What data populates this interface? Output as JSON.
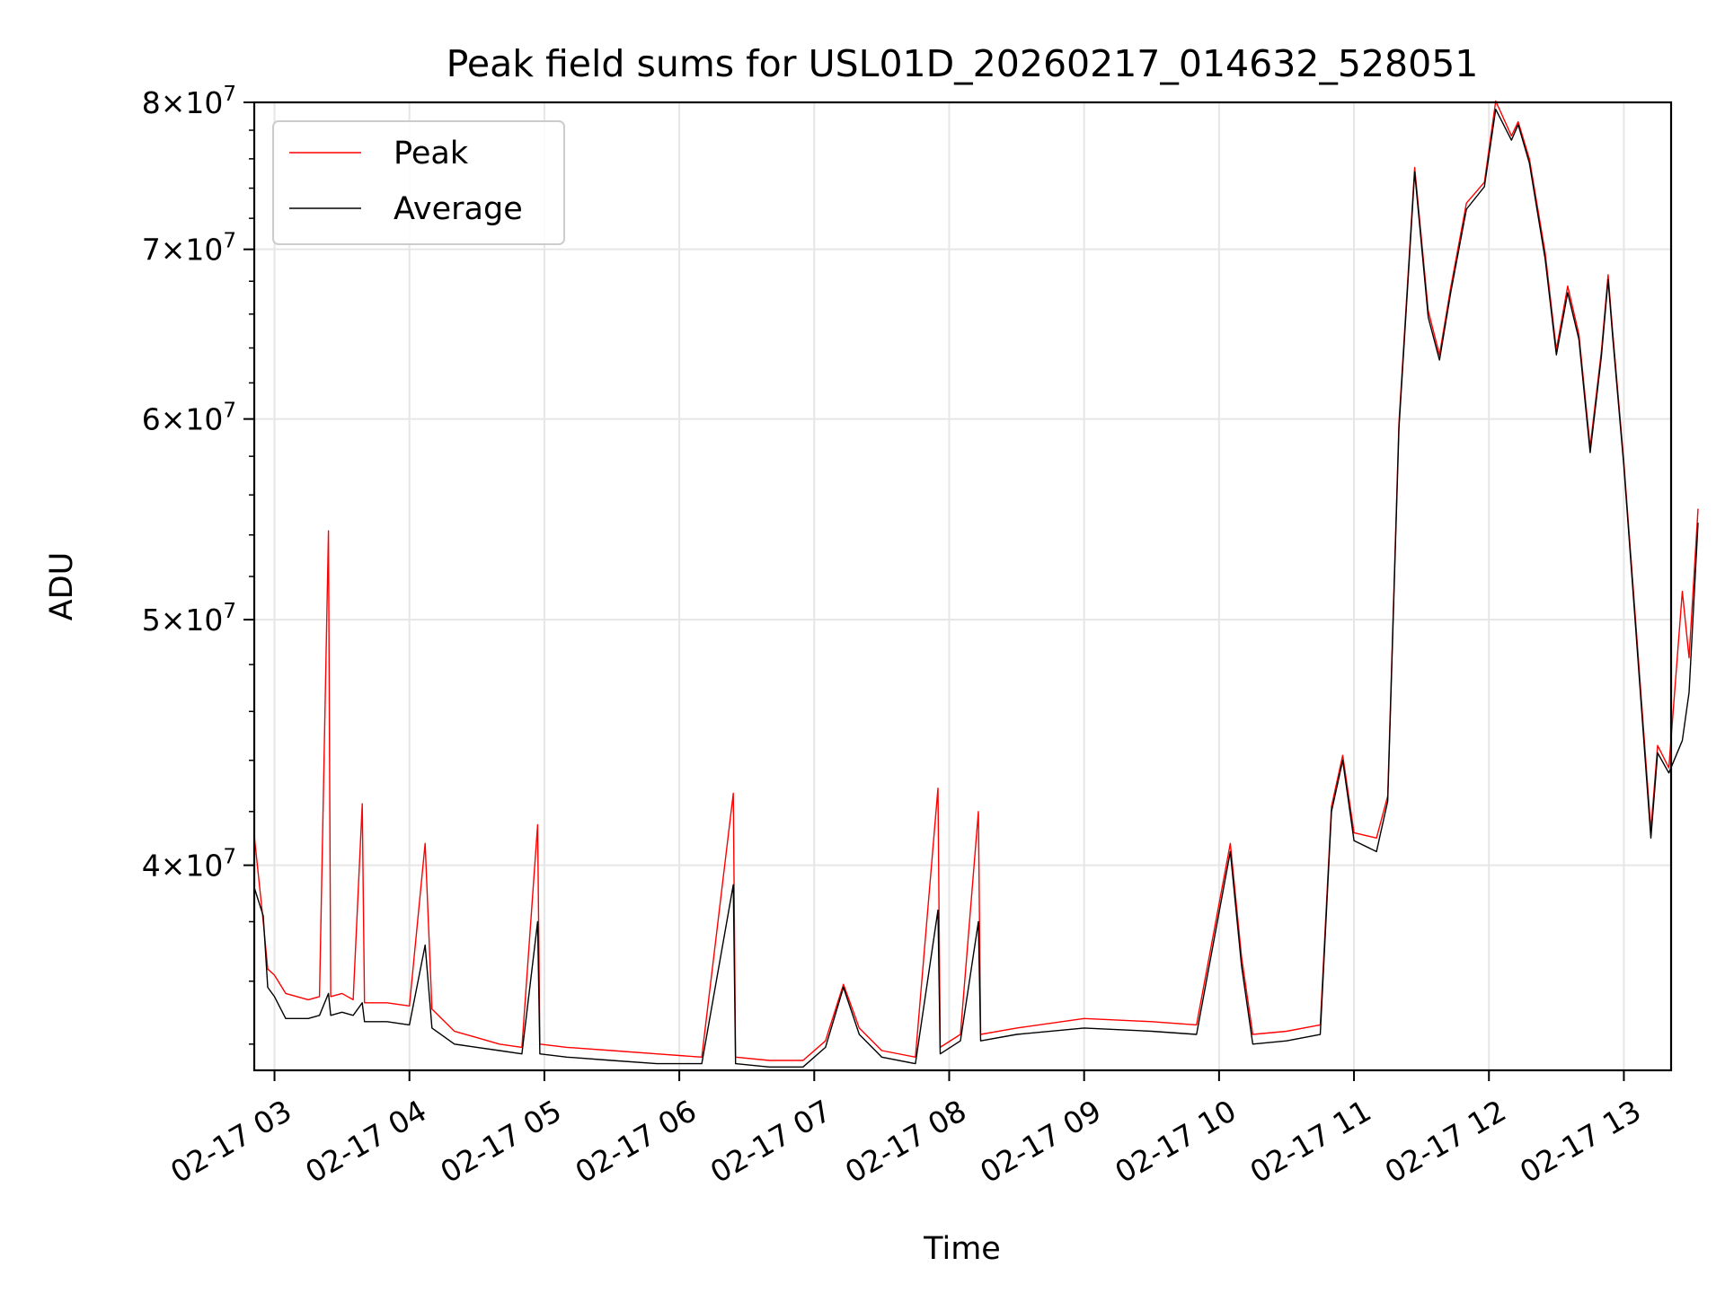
{
  "chart_data": {
    "type": "line",
    "title": "Peak field sums for USL01D_20260217_014632_528051",
    "xlabel": "Time",
    "ylabel": "ADU",
    "yscale": "log",
    "ylim": [
      33200000,
      80000000
    ],
    "xlim": [
      "2026-02-17 02:51",
      "2026-02-17 13:21"
    ],
    "grid": true,
    "legend": {
      "location": "upper-left",
      "entries": [
        "Peak",
        "Average"
      ]
    },
    "x_ticks": [
      "02-17 03",
      "02-17 04",
      "02-17 05",
      "02-17 06",
      "02-17 07",
      "02-17 08",
      "02-17 09",
      "02-17 10",
      "02-17 11",
      "02-17 12",
      "02-17 13"
    ],
    "x_tick_times": [
      "2026-02-17 03:00",
      "2026-02-17 04:00",
      "2026-02-17 05:00",
      "2026-02-17 06:00",
      "2026-02-17 07:00",
      "2026-02-17 08:00",
      "2026-02-17 09:00",
      "2026-02-17 10:00",
      "2026-02-17 11:00",
      "2026-02-17 12:00",
      "2026-02-17 13:00"
    ],
    "y_ticks": [
      {
        "value": 40000000,
        "mantissa": "4",
        "exponent": "7"
      },
      {
        "value": 50000000,
        "mantissa": "5",
        "exponent": "7"
      },
      {
        "value": 60000000,
        "mantissa": "6",
        "exponent": "7"
      },
      {
        "value": 70000000,
        "mantissa": "7",
        "exponent": "7"
      },
      {
        "value": 80000000,
        "mantissa": "8",
        "exponent": "7"
      }
    ],
    "series": [
      {
        "name": "Peak",
        "color": "#ff0000",
        "points": [
          [
            "02:51",
            41100000
          ],
          [
            "02:55",
            38000000
          ],
          [
            "02:57",
            36400000
          ],
          [
            "03:00",
            36200000
          ],
          [
            "03:05",
            35600000
          ],
          [
            "03:10",
            35500000
          ],
          [
            "03:15",
            35400000
          ],
          [
            "03:20",
            35500000
          ],
          [
            "03:24",
            54200000
          ],
          [
            "03:25",
            35500000
          ],
          [
            "03:30",
            35600000
          ],
          [
            "03:35",
            35400000
          ],
          [
            "03:39",
            42300000
          ],
          [
            "03:40",
            35300000
          ],
          [
            "03:50",
            35300000
          ],
          [
            "04:00",
            35200000
          ],
          [
            "04:07",
            40800000
          ],
          [
            "04:10",
            35100000
          ],
          [
            "04:20",
            34400000
          ],
          [
            "04:30",
            34200000
          ],
          [
            "04:40",
            34000000
          ],
          [
            "04:50",
            33900000
          ],
          [
            "04:57",
            41500000
          ],
          [
            "04:58",
            34000000
          ],
          [
            "05:10",
            33900000
          ],
          [
            "05:30",
            33800000
          ],
          [
            "05:50",
            33700000
          ],
          [
            "06:10",
            33600000
          ],
          [
            "06:24",
            42700000
          ],
          [
            "06:25",
            33600000
          ],
          [
            "06:40",
            33500000
          ],
          [
            "06:55",
            33500000
          ],
          [
            "07:05",
            34100000
          ],
          [
            "07:13",
            35900000
          ],
          [
            "07:20",
            34500000
          ],
          [
            "07:30",
            33800000
          ],
          [
            "07:45",
            33600000
          ],
          [
            "07:55",
            42900000
          ],
          [
            "07:56",
            33900000
          ],
          [
            "08:05",
            34300000
          ],
          [
            "08:13",
            42000000
          ],
          [
            "08:14",
            34300000
          ],
          [
            "08:30",
            34500000
          ],
          [
            "09:00",
            34800000
          ],
          [
            "09:30",
            34700000
          ],
          [
            "09:50",
            34600000
          ],
          [
            "10:05",
            40800000
          ],
          [
            "10:10",
            36800000
          ],
          [
            "10:15",
            34300000
          ],
          [
            "10:30",
            34400000
          ],
          [
            "10:45",
            34600000
          ],
          [
            "10:50",
            42200000
          ],
          [
            "10:55",
            44200000
          ],
          [
            "11:00",
            41200000
          ],
          [
            "11:10",
            41000000
          ],
          [
            "11:15",
            42600000
          ],
          [
            "11:20",
            59800000
          ],
          [
            "11:27",
            75400000
          ],
          [
            "11:33",
            66200000
          ],
          [
            "11:38",
            63600000
          ],
          [
            "11:43",
            67600000
          ],
          [
            "11:50",
            73000000
          ],
          [
            "11:58",
            74400000
          ],
          [
            "12:03",
            80100000
          ],
          [
            "12:10",
            77600000
          ],
          [
            "12:13",
            78600000
          ],
          [
            "12:18",
            76000000
          ],
          [
            "12:25",
            69800000
          ],
          [
            "12:30",
            63900000
          ],
          [
            "12:35",
            67700000
          ],
          [
            "12:40",
            64800000
          ],
          [
            "12:45",
            58500000
          ],
          [
            "12:50",
            63800000
          ],
          [
            "12:53",
            68400000
          ],
          [
            "12:55",
            65000000
          ],
          [
            "13:00",
            57700000
          ],
          [
            "13:05",
            50300000
          ],
          [
            "13:12",
            41300000
          ],
          [
            "13:15",
            44600000
          ],
          [
            "13:20",
            43700000
          ],
          [
            "13:26",
            51300000
          ],
          [
            "13:29",
            48300000
          ],
          [
            "13:33",
            55300000
          ]
        ]
      },
      {
        "name": "Average",
        "color": "#000000",
        "points": [
          [
            "02:51",
            39200000
          ],
          [
            "02:55",
            38200000
          ],
          [
            "02:57",
            35800000
          ],
          [
            "03:00",
            35500000
          ],
          [
            "03:05",
            34800000
          ],
          [
            "03:10",
            34800000
          ],
          [
            "03:15",
            34800000
          ],
          [
            "03:20",
            34900000
          ],
          [
            "03:24",
            35600000
          ],
          [
            "03:25",
            34900000
          ],
          [
            "03:30",
            35000000
          ],
          [
            "03:35",
            34900000
          ],
          [
            "03:39",
            35300000
          ],
          [
            "03:40",
            34700000
          ],
          [
            "03:50",
            34700000
          ],
          [
            "04:00",
            34600000
          ],
          [
            "04:07",
            37200000
          ],
          [
            "04:10",
            34500000
          ],
          [
            "04:20",
            34000000
          ],
          [
            "04:30",
            33900000
          ],
          [
            "04:40",
            33800000
          ],
          [
            "04:50",
            33700000
          ],
          [
            "04:57",
            38000000
          ],
          [
            "04:58",
            33700000
          ],
          [
            "05:10",
            33600000
          ],
          [
            "05:30",
            33500000
          ],
          [
            "05:50",
            33400000
          ],
          [
            "06:10",
            33400000
          ],
          [
            "06:24",
            39300000
          ],
          [
            "06:25",
            33400000
          ],
          [
            "06:40",
            33300000
          ],
          [
            "06:55",
            33300000
          ],
          [
            "07:05",
            33900000
          ],
          [
            "07:13",
            35800000
          ],
          [
            "07:20",
            34300000
          ],
          [
            "07:30",
            33600000
          ],
          [
            "07:45",
            33400000
          ],
          [
            "07:55",
            38400000
          ],
          [
            "07:56",
            33700000
          ],
          [
            "08:05",
            34100000
          ],
          [
            "08:13",
            38000000
          ],
          [
            "08:14",
            34100000
          ],
          [
            "08:30",
            34300000
          ],
          [
            "09:00",
            34500000
          ],
          [
            "09:30",
            34400000
          ],
          [
            "09:50",
            34300000
          ],
          [
            "10:05",
            40500000
          ],
          [
            "10:10",
            36500000
          ],
          [
            "10:15",
            34000000
          ],
          [
            "10:30",
            34100000
          ],
          [
            "10:45",
            34300000
          ],
          [
            "10:50",
            42000000
          ],
          [
            "10:55",
            44000000
          ],
          [
            "11:00",
            40900000
          ],
          [
            "11:10",
            40500000
          ],
          [
            "11:15",
            42400000
          ],
          [
            "11:20",
            59500000
          ],
          [
            "11:27",
            75100000
          ],
          [
            "11:33",
            65800000
          ],
          [
            "11:38",
            63300000
          ],
          [
            "11:43",
            67300000
          ],
          [
            "11:50",
            72600000
          ],
          [
            "11:58",
            74100000
          ],
          [
            "12:03",
            79500000
          ],
          [
            "12:10",
            77300000
          ],
          [
            "12:13",
            78400000
          ],
          [
            "12:18",
            75700000
          ],
          [
            "12:25",
            69400000
          ],
          [
            "12:30",
            63600000
          ],
          [
            "12:35",
            67300000
          ],
          [
            "12:40",
            64500000
          ],
          [
            "12:45",
            58200000
          ],
          [
            "12:50",
            63500000
          ],
          [
            "12:53",
            68100000
          ],
          [
            "12:55",
            64700000
          ],
          [
            "13:00",
            57500000
          ],
          [
            "13:05",
            50000000
          ],
          [
            "13:12",
            41000000
          ],
          [
            "13:15",
            44300000
          ],
          [
            "13:20",
            43500000
          ],
          [
            "13:26",
            44800000
          ],
          [
            "13:29",
            46800000
          ],
          [
            "13:33",
            54600000
          ]
        ]
      }
    ]
  }
}
